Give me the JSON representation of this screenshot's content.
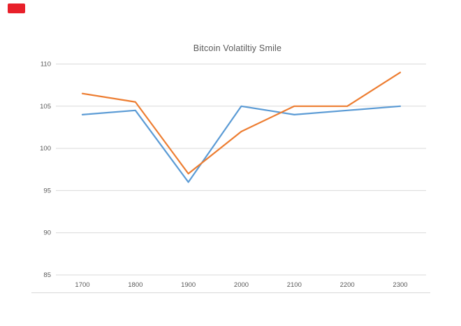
{
  "marker": {
    "name": "red-rectangle",
    "color": "#E8202A"
  },
  "chart_data": {
    "type": "line",
    "title": "Bitcoin Volatiltiy Smile",
    "categories": [
      "1700",
      "1800",
      "1900",
      "2000",
      "2100",
      "2200",
      "2300"
    ],
    "series": [
      {
        "name": "blue-series",
        "color": "#5B9BD5",
        "values": [
          104,
          104.5,
          96,
          105,
          104,
          104.5,
          105
        ]
      },
      {
        "name": "orange-series",
        "color": "#ED7D31",
        "values": [
          106.5,
          105.5,
          97,
          102,
          105,
          105,
          109
        ]
      }
    ],
    "xlabel": "",
    "ylabel": "",
    "ylim": [
      85,
      110
    ],
    "yticks": [
      85,
      90,
      95,
      100,
      105,
      110
    ],
    "grid": true,
    "gridline_color": "#D9D9D9",
    "tick_label_color": "#595959",
    "title_color": "#595959",
    "legend_position": "none"
  }
}
